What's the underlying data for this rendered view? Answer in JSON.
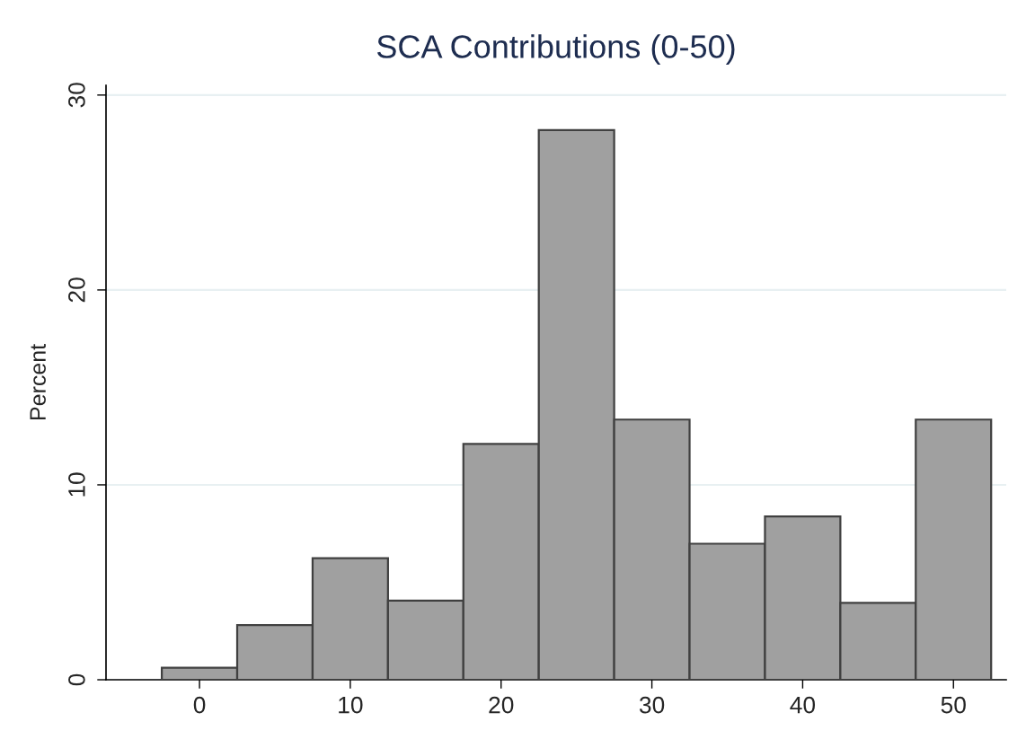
{
  "chart_data": {
    "type": "histogram",
    "title": "SCA Contributions (0-50)",
    "ylabel": "Percent",
    "bins": [
      -2.5,
      2.5,
      7.5,
      12.5,
      17.5,
      22.5,
      27.5,
      32.5,
      37.5,
      42.5,
      47.5,
      52.5
    ],
    "values": [
      0.62,
      2.8,
      6.24,
      4.06,
      12.1,
      28.2,
      13.35,
      6.98,
      8.38,
      3.94,
      13.35
    ],
    "color": "#a0a0a0",
    "xlim": [
      -6.2,
      53.5
    ],
    "xticks": [
      0,
      10,
      20,
      30,
      40,
      50
    ],
    "ylim": [
      0,
      30.5
    ],
    "yticks": [
      0,
      10,
      20,
      30
    ],
    "grid": "y"
  }
}
